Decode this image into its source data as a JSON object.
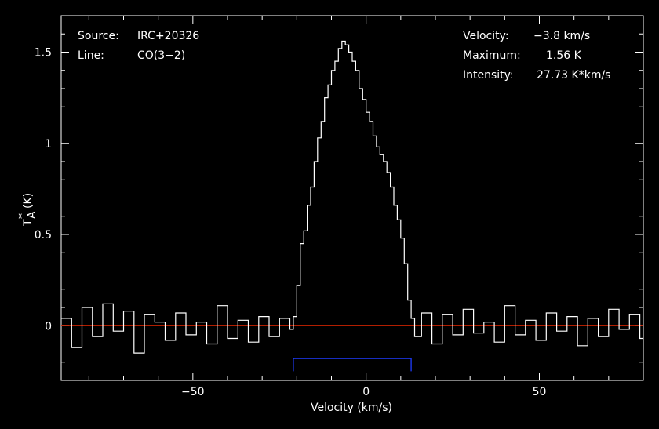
{
  "chart_data": {
    "type": "line",
    "title": "",
    "xlabel": "Velocity (km/s)",
    "ylabel": "T*A (K)",
    "ylabel_main": "T",
    "ylabel_sup": "*",
    "ylabel_sub": "A",
    "ylabel_unit": "(K)",
    "xlim": [
      -88,
      80
    ],
    "ylim": [
      -0.3,
      1.7
    ],
    "xticks": [
      -50,
      0,
      50
    ],
    "xtick_labels": [
      "−50",
      "0",
      "50"
    ],
    "yticks": [
      0,
      0.5,
      1,
      1.5
    ],
    "ytick_labels": [
      "0",
      "0.5",
      "1",
      "1.5"
    ],
    "grid": false,
    "colors": {
      "spectrum": "#ffffff",
      "baseline": "#cc2200",
      "window": "#1f3cff",
      "axes": "#ffffff"
    },
    "annotations": {
      "source_label": "Source:",
      "source_value": "IRC+20326",
      "line_label": "Line:",
      "line_value": "CO(3−2)",
      "velocity_label": "Velocity:",
      "velocity_value": "−3.8 km/s",
      "maximum_label": "Maximum:",
      "maximum_value": "1.56 K",
      "intensity_label": "Intensity:",
      "intensity_value": "27.73 K*km/s"
    },
    "baseline_y": 0,
    "integration_window": {
      "x_start": -21,
      "x_end": 13,
      "y": -0.18,
      "y_bottom": -0.25
    },
    "series": [
      {
        "values_x": [
          -88,
          -85,
          -82,
          -79,
          -76,
          -73,
          -70,
          -67,
          -64,
          -61,
          -58,
          -55,
          -52,
          -49,
          -46,
          -43,
          -40,
          -37,
          -34,
          -31,
          -28,
          -25,
          -22,
          -21,
          -20,
          -19,
          -18,
          -17,
          -16,
          -15,
          -14,
          -13,
          -12,
          -11,
          -10,
          -9,
          -8,
          -7,
          -6,
          -5,
          -4,
          -3,
          -2,
          -1,
          0,
          1,
          2,
          3,
          4,
          5,
          6,
          7,
          8,
          9,
          10,
          11,
          12,
          13,
          14,
          16,
          19,
          22,
          25,
          28,
          31,
          34,
          37,
          40,
          43,
          46,
          49,
          52,
          55,
          58,
          61,
          64,
          67,
          70,
          73,
          76,
          79
        ],
        "values": [
          0.04,
          -0.12,
          0.1,
          -0.06,
          0.12,
          -0.03,
          0.08,
          -0.15,
          0.06,
          0.02,
          -0.08,
          0.07,
          -0.05,
          0.02,
          -0.1,
          0.11,
          -0.07,
          0.03,
          -0.09,
          0.05,
          -0.06,
          0.04,
          -0.02,
          0.05,
          0.22,
          0.45,
          0.52,
          0.66,
          0.76,
          0.9,
          1.03,
          1.12,
          1.25,
          1.32,
          1.4,
          1.45,
          1.52,
          1.56,
          1.54,
          1.5,
          1.45,
          1.4,
          1.3,
          1.24,
          1.17,
          1.12,
          1.04,
          0.98,
          0.94,
          0.9,
          0.84,
          0.76,
          0.66,
          0.58,
          0.48,
          0.34,
          0.14,
          0.04,
          -0.06,
          0.07,
          -0.1,
          0.06,
          -0.05,
          0.09,
          -0.04,
          0.02,
          -0.09,
          0.11,
          -0.05,
          0.03,
          -0.08,
          0.07,
          -0.03,
          0.05,
          -0.11,
          0.04,
          -0.06,
          0.09,
          -0.02,
          0.06,
          -0.07
        ]
      }
    ]
  }
}
